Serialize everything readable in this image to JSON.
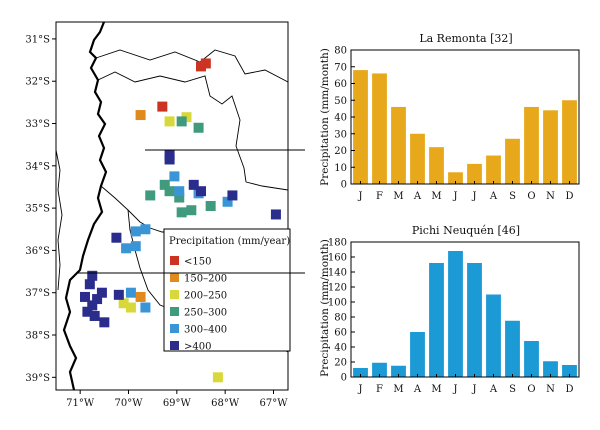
{
  "colors": {
    "lt150": "#cc3322",
    "c150_200": "#e08a1e",
    "c200_250": "#d9d83a",
    "c250_300": "#3f9a7e",
    "c300_400": "#3a95d6",
    "gt400": "#2b2d8c",
    "bar_la_remonta": "#e8a81c",
    "bar_pichi": "#1b9ad6"
  },
  "chart_data": [
    {
      "type": "scatter",
      "xaxis_ticks": [
        "71°W",
        "70°W",
        "69°W",
        "68°W",
        "67°W"
      ],
      "yaxis_ticks": [
        "31°S",
        "32°S",
        "33°S",
        "34°S",
        "35°S",
        "36°S",
        "37°S",
        "38°S",
        "39°S"
      ],
      "xlim": [
        -71.5,
        -66.7
      ],
      "ylim": [
        -39.3,
        -30.6
      ],
      "legend": {
        "title": "Precipitation (mm/year)",
        "entries": [
          {
            "key": "lt150",
            "label": "<150"
          },
          {
            "key": "c150_200",
            "label": "150–200"
          },
          {
            "key": "c200_250",
            "label": "200–250"
          },
          {
            "key": "c250_300",
            "label": "250–300"
          },
          {
            "key": "c300_400",
            "label": "300–400"
          },
          {
            "key": "gt400",
            "label": ">400"
          }
        ]
      },
      "series": [
        {
          "class": "lt150",
          "points": [
            [
              -68.5,
              -31.65
            ],
            [
              -68.4,
              -31.58
            ],
            [
              -69.3,
              -32.6
            ]
          ]
        },
        {
          "class": "c150_200",
          "points": [
            [
              -69.75,
              -32.8
            ],
            [
              -69.75,
              -37.1
            ]
          ]
        },
        {
          "class": "c200_250",
          "points": [
            [
              -69.15,
              -32.95
            ],
            [
              -68.8,
              -32.85
            ],
            [
              -70.1,
              -37.25
            ],
            [
              -69.95,
              -37.35
            ],
            [
              -68.15,
              -39.0
            ]
          ]
        },
        {
          "class": "c250_300",
          "points": [
            [
              -68.55,
              -33.1
            ],
            [
              -68.9,
              -32.95
            ],
            [
              -69.15,
              -34.6
            ],
            [
              -69.55,
              -34.7
            ],
            [
              -68.95,
              -34.75
            ],
            [
              -68.9,
              -35.1
            ],
            [
              -68.7,
              -35.05
            ],
            [
              -68.3,
              -34.95
            ],
            [
              -69.25,
              -34.45
            ]
          ]
        },
        {
          "class": "c300_400",
          "points": [
            [
              -69.05,
              -34.25
            ],
            [
              -68.95,
              -34.6
            ],
            [
              -68.55,
              -34.65
            ],
            [
              -67.95,
              -34.85
            ],
            [
              -69.85,
              -35.55
            ],
            [
              -69.65,
              -35.5
            ],
            [
              -70.05,
              -35.95
            ],
            [
              -69.85,
              -35.9
            ],
            [
              -69.95,
              -37.0
            ],
            [
              -69.65,
              -37.35
            ]
          ]
        },
        {
          "class": "gt400",
          "points": [
            [
              -69.15,
              -33.75
            ],
            [
              -69.15,
              -33.85
            ],
            [
              -68.65,
              -34.45
            ],
            [
              -68.5,
              -34.6
            ],
            [
              -67.85,
              -34.7
            ],
            [
              -66.95,
              -35.15
            ],
            [
              -70.25,
              -35.7
            ],
            [
              -70.75,
              -36.6
            ],
            [
              -70.8,
              -36.8
            ],
            [
              -70.55,
              -37.0
            ],
            [
              -70.2,
              -37.05
            ],
            [
              -70.75,
              -37.3
            ],
            [
              -70.65,
              -37.15
            ],
            [
              -70.85,
              -37.45
            ],
            [
              -70.9,
              -37.1
            ],
            [
              -70.7,
              -37.55
            ],
            [
              -70.5,
              -37.7
            ]
          ]
        }
      ]
    },
    {
      "type": "bar",
      "title": "La Remonta [32]",
      "ylabel": "Precipitation (mm/month)",
      "categories": [
        "J",
        "F",
        "M",
        "A",
        "M",
        "J",
        "J",
        "A",
        "S",
        "O",
        "N",
        "D"
      ],
      "values": [
        68,
        66,
        46,
        30,
        22,
        7,
        12,
        17,
        27,
        46,
        44,
        50
      ],
      "ylim": [
        0,
        80
      ],
      "yticks": [
        0,
        10,
        20,
        30,
        40,
        50,
        60,
        70,
        80
      ]
    },
    {
      "type": "bar",
      "title": "Pichi Neuquén [46]",
      "ylabel": "Precipitation (mm/month)",
      "categories": [
        "J",
        "F",
        "M",
        "A",
        "M",
        "J",
        "J",
        "A",
        "S",
        "O",
        "N",
        "D"
      ],
      "values": [
        12,
        19,
        15,
        60,
        152,
        168,
        152,
        110,
        75,
        48,
        21,
        16
      ],
      "ylim": [
        0,
        180
      ],
      "yticks": [
        0,
        20,
        40,
        60,
        80,
        100,
        120,
        140,
        160,
        180
      ]
    }
  ]
}
